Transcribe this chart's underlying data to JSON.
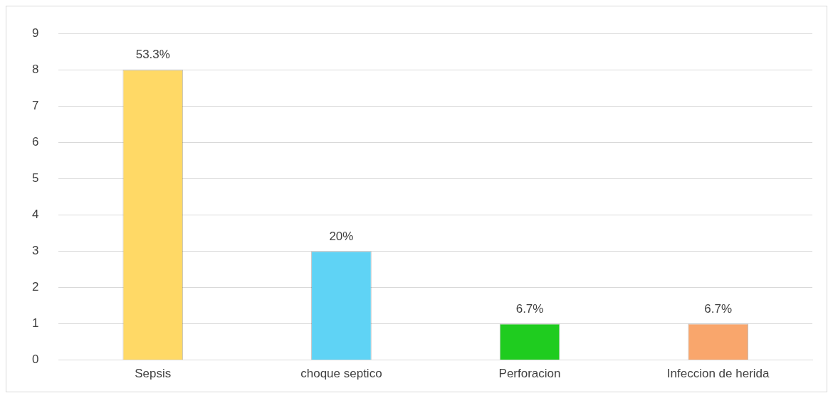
{
  "chart_data": {
    "type": "bar",
    "categories": [
      "Sepsis",
      "choque septico",
      "Perforacion",
      "Infeccion de herida"
    ],
    "values": [
      8,
      3,
      1,
      1
    ],
    "colors": [
      "#ffd966",
      "#5fd3f5",
      "#1fcc1f",
      "#f9a66c"
    ],
    "annotations": [
      {
        "text": "53.3%",
        "x": "Sepsis",
        "y": 8
      },
      {
        "text": "20%",
        "x": "choque septico",
        "y": 3
      },
      {
        "text": "6.7%",
        "x": "Perforacion",
        "y": 1
      },
      {
        "text": "6.7%",
        "x": "Infeccion de herida",
        "y": 1
      }
    ],
    "ylim": [
      0,
      9
    ],
    "yticks": [
      0,
      1,
      2,
      3,
      4,
      5,
      6,
      7,
      8,
      9
    ],
    "grid": "y"
  }
}
